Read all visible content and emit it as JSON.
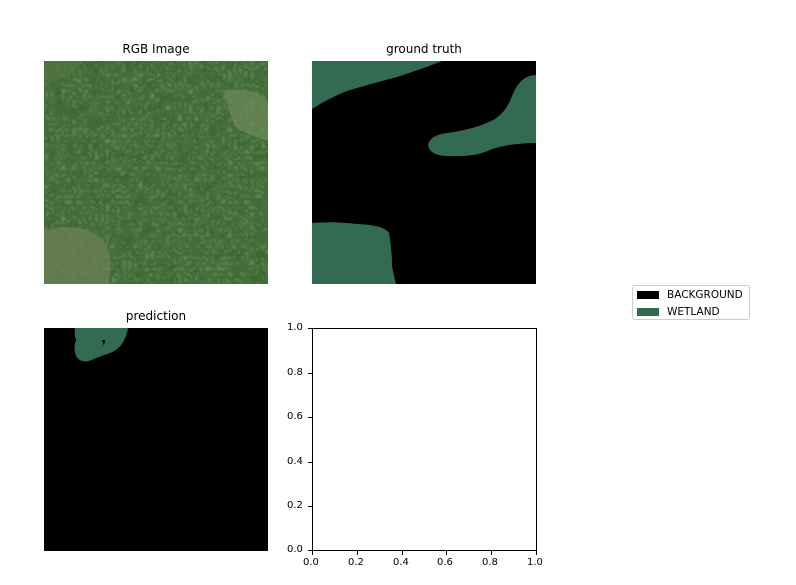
{
  "figure": {
    "panels": [
      {
        "title": "RGB Image"
      },
      {
        "title": "ground truth"
      },
      {
        "title": "prediction"
      }
    ],
    "legend": {
      "items": [
        {
          "label": "BACKGROUND",
          "color": "#000000"
        },
        {
          "label": "WETLAND",
          "color": "#336b52"
        }
      ]
    },
    "empty_axes": {
      "x_ticks": [
        "0.0",
        "0.2",
        "0.4",
        "0.6",
        "0.8",
        "1.0"
      ],
      "y_ticks": [
        "1.0",
        "0.8",
        "0.6",
        "0.4",
        "0.2",
        "0.0"
      ]
    }
  },
  "colors": {
    "wetland": "#336b52",
    "background": "#000000",
    "forest_dark": "#1d3a1c",
    "forest_mid": "#37632c",
    "forest_light": "#5b8a46",
    "meadow": "#6c8055"
  }
}
